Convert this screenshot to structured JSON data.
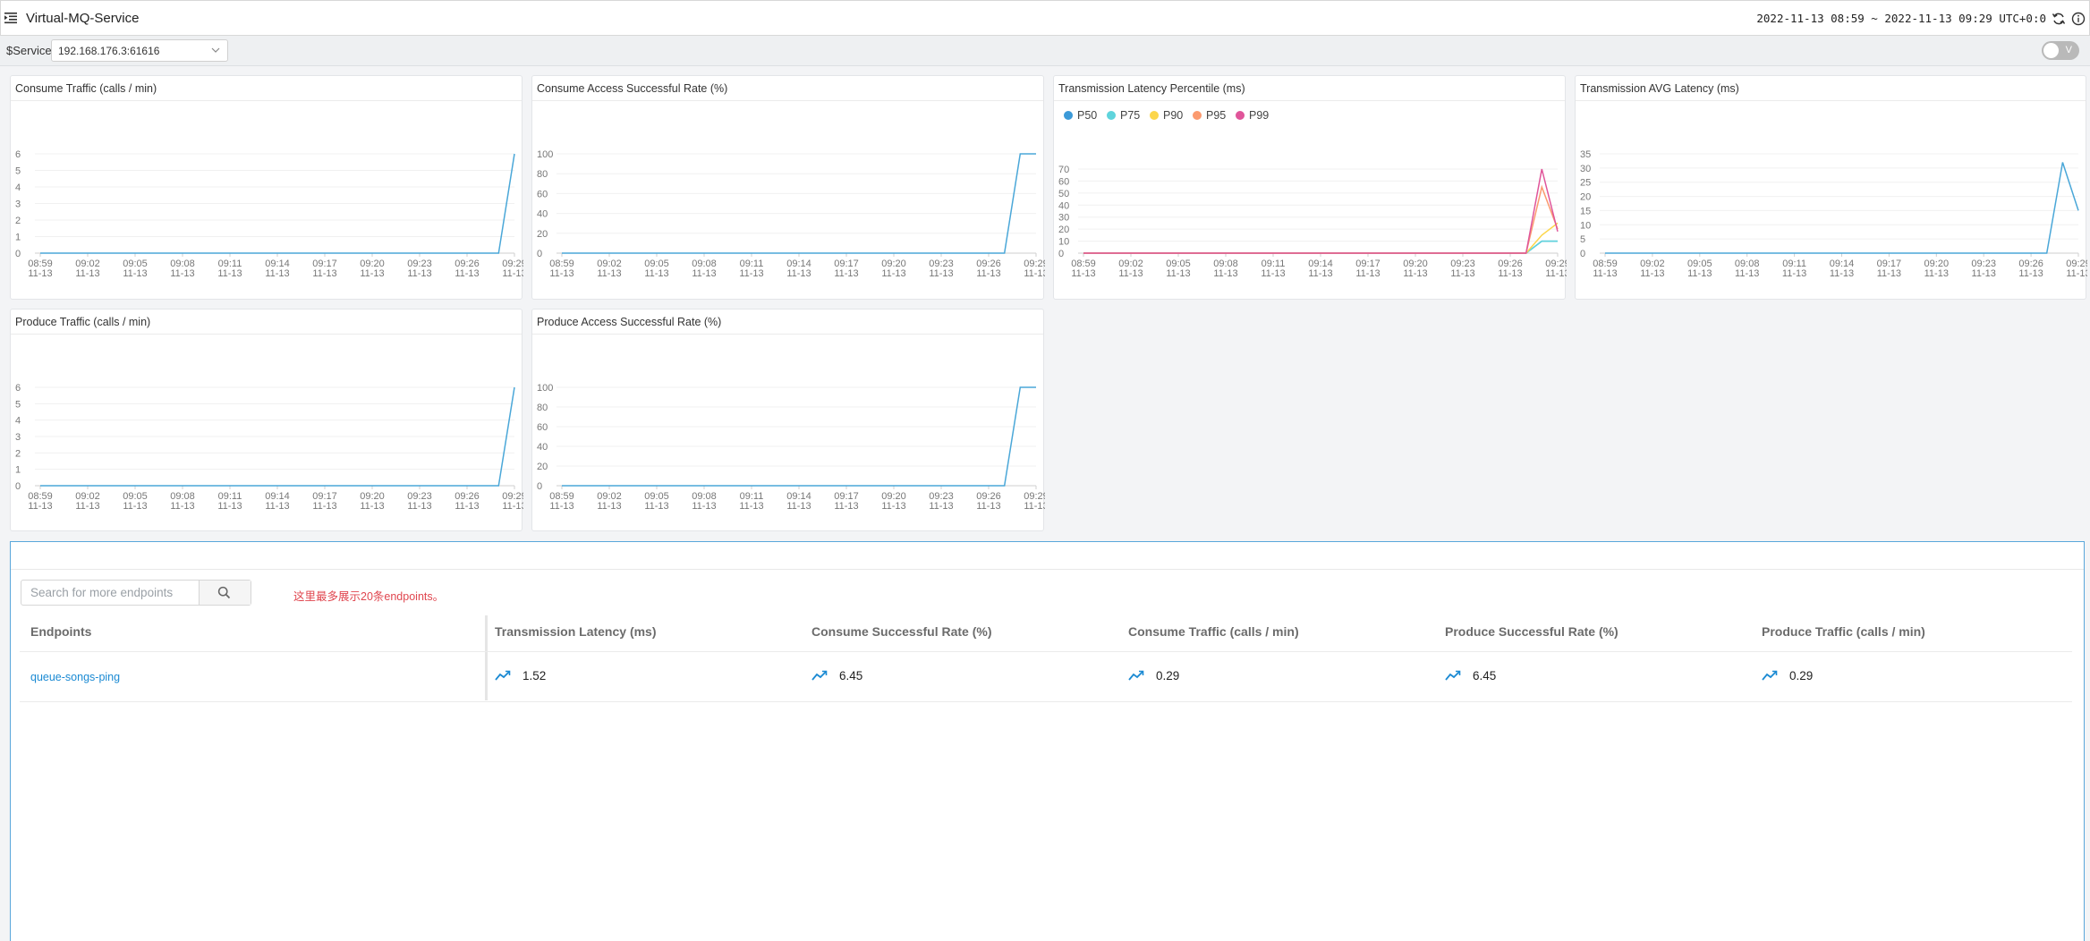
{
  "header": {
    "title": "Virtual-MQ-Service",
    "time_range": "2022-11-13 08:59 ~ 2022-11-13 09:29",
    "timezone": "UTC+0:0"
  },
  "toolbar": {
    "service_label": "$Service",
    "service_value": "192.168.176.3:61616",
    "toggle_label": "V"
  },
  "colors": {
    "line": "#4aa7d8",
    "p50": "#3c9ad8",
    "p75": "#5fd4dc",
    "p90": "#fcd64c",
    "p95": "#fb9a6f",
    "p99": "#e0559a"
  },
  "x_ticks": [
    [
      "08:59",
      "11-13"
    ],
    [
      "09:02",
      "11-13"
    ],
    [
      "09:05",
      "11-13"
    ],
    [
      "09:08",
      "11-13"
    ],
    [
      "09:11",
      "11-13"
    ],
    [
      "09:14",
      "11-13"
    ],
    [
      "09:17",
      "11-13"
    ],
    [
      "09:20",
      "11-13"
    ],
    [
      "09:23",
      "11-13"
    ],
    [
      "09:26",
      "11-13"
    ],
    [
      "09:29",
      "11-13"
    ]
  ],
  "panels": [
    {
      "id": "consume-traffic",
      "title": "Consume Traffic (calls / min)",
      "chart_data": {
        "type": "line",
        "ylim": [
          0,
          6
        ],
        "yticks": [
          0,
          1,
          2,
          3,
          4,
          5,
          6
        ],
        "series": [
          {
            "color": "#4aa7d8",
            "values": [
              0,
              0,
              0,
              0,
              0,
              0,
              0,
              0,
              0,
              0,
              0,
              0,
              0,
              0,
              0,
              0,
              0,
              0,
              0,
              0,
              0,
              0,
              0,
              0,
              0,
              0,
              0,
              0,
              0,
              0,
              6
            ]
          }
        ]
      }
    },
    {
      "id": "consume-access-rate",
      "title": "Consume Access Successful Rate (%)",
      "chart_data": {
        "type": "line",
        "ylim": [
          0,
          100
        ],
        "yticks": [
          0,
          20,
          40,
          60,
          80,
          100
        ],
        "series": [
          {
            "color": "#4aa7d8",
            "values": [
              0,
              0,
              0,
              0,
              0,
              0,
              0,
              0,
              0,
              0,
              0,
              0,
              0,
              0,
              0,
              0,
              0,
              0,
              0,
              0,
              0,
              0,
              0,
              0,
              0,
              0,
              0,
              0,
              0,
              100,
              100
            ]
          }
        ]
      }
    },
    {
      "id": "transmission-latency-percentile",
      "title": "Transmission Latency Percentile (ms)",
      "chart_data": {
        "type": "line",
        "ylim": [
          0,
          70
        ],
        "yticks": [
          0,
          10,
          20,
          30,
          40,
          50,
          60,
          70
        ],
        "legend": [
          "P50",
          "P75",
          "P90",
          "P95",
          "P99"
        ],
        "series": [
          {
            "name": "P50",
            "color": "#3c9ad8",
            "values": [
              0,
              0,
              0,
              0,
              0,
              0,
              0,
              0,
              0,
              0,
              0,
              0,
              0,
              0,
              0,
              0,
              0,
              0,
              0,
              0,
              0,
              0,
              0,
              0,
              0,
              0,
              0,
              0,
              0,
              10,
              10
            ]
          },
          {
            "name": "P75",
            "color": "#5fd4dc",
            "values": [
              0,
              0,
              0,
              0,
              0,
              0,
              0,
              0,
              0,
              0,
              0,
              0,
              0,
              0,
              0,
              0,
              0,
              0,
              0,
              0,
              0,
              0,
              0,
              0,
              0,
              0,
              0,
              0,
              0,
              10,
              10
            ]
          },
          {
            "name": "P90",
            "color": "#fcd64c",
            "values": [
              0,
              0,
              0,
              0,
              0,
              0,
              0,
              0,
              0,
              0,
              0,
              0,
              0,
              0,
              0,
              0,
              0,
              0,
              0,
              0,
              0,
              0,
              0,
              0,
              0,
              0,
              0,
              0,
              0,
              15,
              25
            ]
          },
          {
            "name": "P95",
            "color": "#fb9a6f",
            "values": [
              0,
              0,
              0,
              0,
              0,
              0,
              0,
              0,
              0,
              0,
              0,
              0,
              0,
              0,
              0,
              0,
              0,
              0,
              0,
              0,
              0,
              0,
              0,
              0,
              0,
              0,
              0,
              0,
              0,
              55,
              20
            ]
          },
          {
            "name": "P99",
            "color": "#e0559a",
            "values": [
              0,
              0,
              0,
              0,
              0,
              0,
              0,
              0,
              0,
              0,
              0,
              0,
              0,
              0,
              0,
              0,
              0,
              0,
              0,
              0,
              0,
              0,
              0,
              0,
              0,
              0,
              0,
              0,
              0,
              70,
              18
            ]
          }
        ]
      }
    },
    {
      "id": "transmission-avg-latency",
      "title": "Transmission AVG Latency (ms)",
      "chart_data": {
        "type": "line",
        "ylim": [
          0,
          35
        ],
        "yticks": [
          0,
          5,
          10,
          15,
          20,
          25,
          30,
          35
        ],
        "series": [
          {
            "color": "#4aa7d8",
            "values": [
              0,
              0,
              0,
              0,
              0,
              0,
              0,
              0,
              0,
              0,
              0,
              0,
              0,
              0,
              0,
              0,
              0,
              0,
              0,
              0,
              0,
              0,
              0,
              0,
              0,
              0,
              0,
              0,
              0,
              32,
              15
            ]
          }
        ]
      }
    },
    {
      "id": "produce-traffic",
      "title": "Produce Traffic (calls / min)",
      "chart_data": {
        "type": "line",
        "ylim": [
          0,
          6
        ],
        "yticks": [
          0,
          1,
          2,
          3,
          4,
          5,
          6
        ],
        "series": [
          {
            "color": "#4aa7d8",
            "values": [
              0,
              0,
              0,
              0,
              0,
              0,
              0,
              0,
              0,
              0,
              0,
              0,
              0,
              0,
              0,
              0,
              0,
              0,
              0,
              0,
              0,
              0,
              0,
              0,
              0,
              0,
              0,
              0,
              0,
              0,
              6
            ]
          }
        ]
      }
    },
    {
      "id": "produce-access-rate",
      "title": "Produce Access Successful Rate (%)",
      "chart_data": {
        "type": "line",
        "ylim": [
          0,
          100
        ],
        "yticks": [
          0,
          20,
          40,
          60,
          80,
          100
        ],
        "series": [
          {
            "color": "#4aa7d8",
            "values": [
              0,
              0,
              0,
              0,
              0,
              0,
              0,
              0,
              0,
              0,
              0,
              0,
              0,
              0,
              0,
              0,
              0,
              0,
              0,
              0,
              0,
              0,
              0,
              0,
              0,
              0,
              0,
              0,
              0,
              100,
              100
            ]
          }
        ]
      }
    }
  ],
  "endpoints": {
    "search_placeholder": "Search for more endpoints",
    "hint": "这里最多展示20条endpoints。",
    "columns": [
      "Endpoints",
      "Transmission Latency (ms)",
      "Consume Successful Rate (%)",
      "Consume Traffic (calls / min)",
      "Produce Successful Rate (%)",
      "Produce Traffic (calls / min)"
    ],
    "rows": [
      {
        "name": "queue-songs-ping",
        "values": [
          "1.52",
          "6.45",
          "0.29",
          "6.45",
          "0.29"
        ]
      }
    ]
  }
}
